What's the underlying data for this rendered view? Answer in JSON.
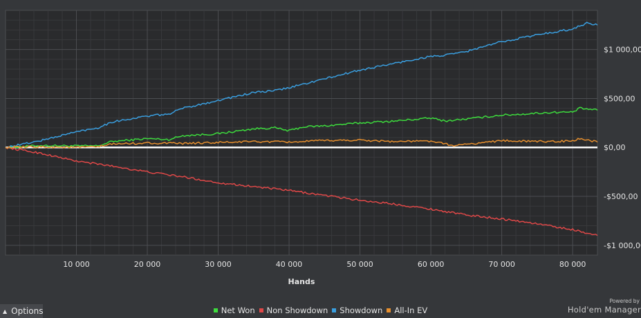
{
  "chart_data": {
    "type": "line",
    "xlabel": "Hands",
    "ylabel": "",
    "xlim": [
      0,
      83500
    ],
    "ylim": [
      -1100,
      1400
    ],
    "x_ticks": [
      10000,
      20000,
      30000,
      40000,
      50000,
      60000,
      70000,
      80000
    ],
    "x_tick_labels": [
      "10 000",
      "20 000",
      "30 000",
      "40 000",
      "50 000",
      "60 000",
      "70 000",
      "80 000"
    ],
    "y_ticks": [
      1000,
      500,
      0,
      -500,
      -1000
    ],
    "y_tick_labels": [
      "$1 000,00",
      "$500,00",
      "$0,00",
      "-$500,00",
      "-$1 000,00"
    ],
    "grid": true,
    "legend_position": "bottom-center",
    "series": [
      {
        "name": "Net Won",
        "color": "#3ddc3d",
        "x": [
          0,
          5000,
          10000,
          13000,
          15000,
          20000,
          23000,
          25000,
          30000,
          32000,
          35000,
          38000,
          40000,
          42000,
          45000,
          50000,
          55000,
          60000,
          62000,
          65000,
          70000,
          73000,
          75000,
          78000,
          80000,
          81000,
          83500
        ],
        "y": [
          0,
          20,
          15,
          15,
          60,
          90,
          80,
          120,
          140,
          160,
          190,
          200,
          170,
          210,
          220,
          250,
          270,
          300,
          270,
          290,
          330,
          340,
          350,
          360,
          360,
          400,
          380
        ]
      },
      {
        "name": "Non Showdown",
        "color": "#e04848",
        "x": [
          0,
          5000,
          10000,
          15000,
          20000,
          25000,
          30000,
          35000,
          40000,
          45000,
          50000,
          55000,
          60000,
          65000,
          70000,
          75000,
          80000,
          83500
        ],
        "y": [
          0,
          -60,
          -140,
          -190,
          -250,
          -300,
          -360,
          -400,
          -440,
          -490,
          -540,
          -580,
          -630,
          -690,
          -730,
          -780,
          -840,
          -900
        ]
      },
      {
        "name": "Showdown",
        "color": "#3a9fe0",
        "x": [
          0,
          5000,
          10000,
          13000,
          15000,
          20000,
          23000,
          25000,
          30000,
          35000,
          38000,
          40000,
          45000,
          50000,
          55000,
          60000,
          62000,
          65000,
          70000,
          75000,
          80000,
          82000,
          83500
        ],
        "y": [
          0,
          70,
          160,
          200,
          260,
          320,
          340,
          400,
          480,
          560,
          580,
          610,
          700,
          790,
          860,
          930,
          940,
          980,
          1080,
          1150,
          1210,
          1270,
          1250
        ]
      },
      {
        "name": "All-In EV",
        "color": "#e8902e",
        "x": [
          0,
          5000,
          10000,
          13000,
          15000,
          20000,
          25000,
          30000,
          35000,
          40000,
          45000,
          50000,
          55000,
          60000,
          63000,
          65000,
          68000,
          70000,
          75000,
          80000,
          81000,
          83500
        ],
        "y": [
          0,
          5,
          0,
          5,
          35,
          45,
          40,
          50,
          60,
          55,
          70,
          75,
          60,
          65,
          20,
          30,
          55,
          70,
          60,
          65,
          90,
          55
        ]
      }
    ]
  },
  "options": {
    "label": "Options",
    "arrow_icon": "chevron-up-icon"
  },
  "branding": {
    "powered": "Powered by",
    "name": "Hold'em Manager"
  }
}
